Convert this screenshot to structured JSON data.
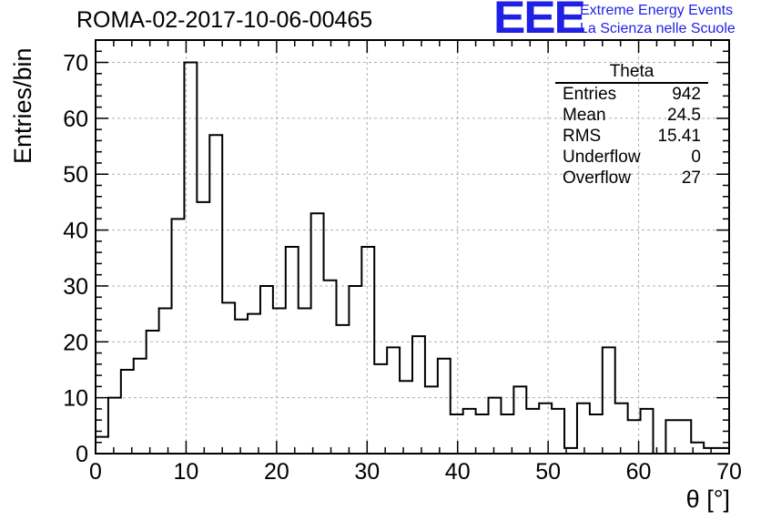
{
  "title": "ROMA-02-2017-10-06-00465",
  "logo": {
    "mark": "EEE",
    "line1": "Extreme Energy Events",
    "line2": "La Scienza nelle Scuole",
    "color": "#1f1fe6"
  },
  "stats": {
    "title": "Theta",
    "rows": [
      {
        "label": "Entries",
        "value": "942"
      },
      {
        "label": "Mean",
        "value": "24.5"
      },
      {
        "label": "RMS",
        "value": "15.41"
      },
      {
        "label": "Underflow",
        "value": "0"
      },
      {
        "label": "Overflow",
        "value": "27"
      }
    ]
  },
  "chart_data": {
    "type": "histogram",
    "xlabel": "θ [°]",
    "ylabel": "Entries/bin",
    "xlim": [
      0,
      70
    ],
    "ylim": [
      0,
      74
    ],
    "bin_width": 1.4,
    "grid": true,
    "x_ticks": [
      0,
      10,
      20,
      30,
      40,
      50,
      60,
      70
    ],
    "y_ticks": [
      0,
      10,
      20,
      30,
      40,
      50,
      60,
      70
    ],
    "values": [
      3,
      10,
      15,
      17,
      22,
      26,
      42,
      70,
      45,
      57,
      27,
      24,
      25,
      30,
      26,
      37,
      26,
      43,
      31,
      23,
      30,
      37,
      16,
      19,
      13,
      21,
      12,
      17,
      7,
      8,
      7,
      10,
      7,
      12,
      8,
      9,
      8,
      1,
      9,
      7,
      19,
      9,
      6,
      8,
      0,
      6,
      6,
      2,
      1,
      1
    ],
    "line_color": "#000000"
  }
}
